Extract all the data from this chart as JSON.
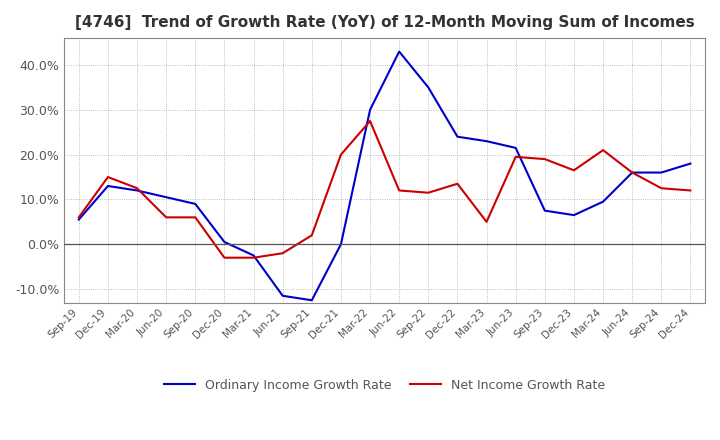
{
  "title": "[4746]  Trend of Growth Rate (YoY) of 12-Month Moving Sum of Incomes",
  "title_fontsize": 11,
  "ylim": [
    -13,
    46
  ],
  "yticks": [
    -10,
    0,
    10,
    20,
    30,
    40
  ],
  "background_color": "#ffffff",
  "grid_color": "#aaaaaa",
  "ordinary_color": "#0000cc",
  "net_color": "#cc0000",
  "legend_labels": [
    "Ordinary Income Growth Rate",
    "Net Income Growth Rate"
  ],
  "x_labels": [
    "Sep-19",
    "Dec-19",
    "Mar-20",
    "Jun-20",
    "Sep-20",
    "Dec-20",
    "Mar-21",
    "Jun-21",
    "Sep-21",
    "Dec-21",
    "Mar-22",
    "Jun-22",
    "Sep-22",
    "Dec-22",
    "Mar-23",
    "Jun-23",
    "Sep-23",
    "Dec-23",
    "Mar-24",
    "Jun-24",
    "Sep-24",
    "Dec-24"
  ],
  "ordinary_values": [
    5.5,
    13.0,
    12.0,
    10.5,
    9.0,
    0.5,
    -2.5,
    -11.5,
    -12.5,
    0.0,
    30.0,
    43.0,
    35.0,
    24.0,
    23.0,
    21.5,
    7.5,
    6.5,
    9.5,
    16.0,
    16.0,
    18.0
  ],
  "net_values": [
    6.0,
    15.0,
    12.5,
    6.0,
    6.0,
    -3.0,
    -3.0,
    -2.0,
    2.0,
    20.0,
    27.5,
    12.0,
    11.5,
    13.5,
    5.0,
    19.5,
    19.0,
    16.5,
    21.0,
    16.0,
    12.5,
    12.0
  ]
}
